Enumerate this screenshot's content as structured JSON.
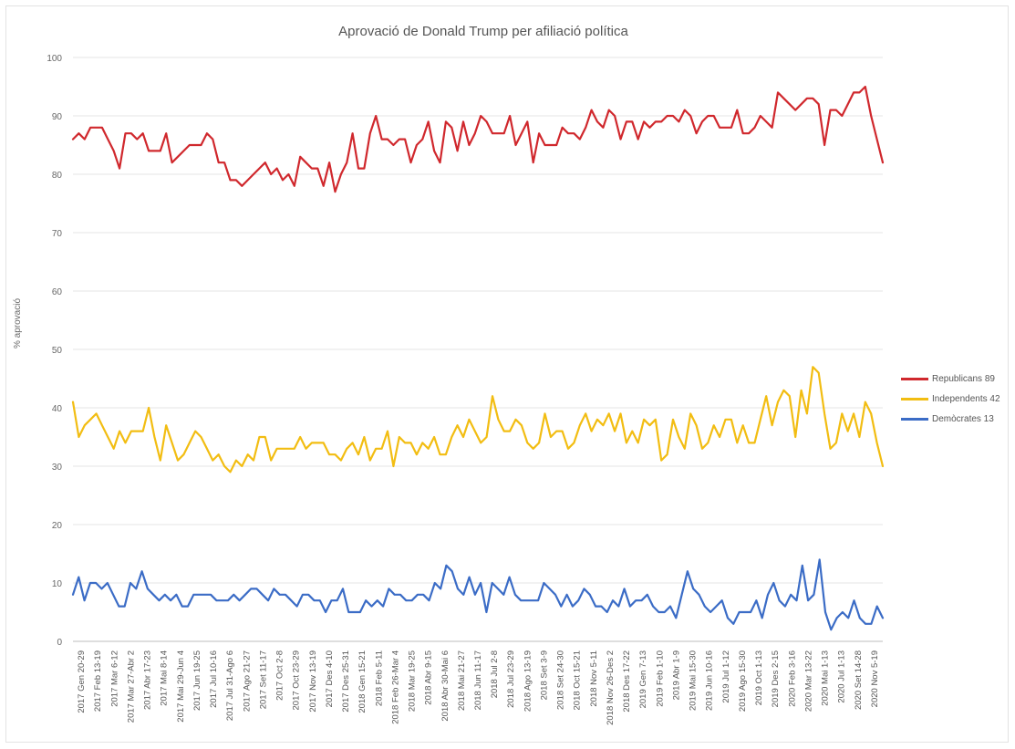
{
  "chart_data": {
    "type": "line",
    "title": "Aprovació de Donald Trump per afiliació política",
    "xlabel": "",
    "ylabel": "% aprovació",
    "ylim": [
      0,
      100
    ],
    "yticks": [
      0,
      10,
      20,
      30,
      40,
      50,
      60,
      70,
      80,
      90,
      100
    ],
    "grid": true,
    "legend_position": "right",
    "x_tick_labels": [
      "2017 Gen 20-29",
      "2017 Feb 13-19",
      "2017 Mar 6-12",
      "2017 Mar 27-Abr 2",
      "2017 Abr 17-23",
      "2017 Mai 8-14",
      "2017 Mai 29-Jun 4",
      "2017 Jun 19-25",
      "2017 Jul 10-16",
      "2017 Jul 31-Ago 6",
      "2017 Ago 21-27",
      "2017 Set 11-17",
      "2017 Oct 2-8",
      "2017 Oct 23-29",
      "2017 Nov 13-19",
      "2017 Des 4-10",
      "2017 Des 25-31",
      "2018 Gen 15-21",
      "2018 Feb 5-11",
      "2018 Feb 26-Mar 4",
      "2018 Mar 19-25",
      "2018 Abr 9-15",
      "2018 Abr 30-Mai 6",
      "2018 Mai 21-27",
      "2018 Jun 11-17",
      "2018 Jul 2-8",
      "2018 Jul 23-29",
      "2018 Ago 13-19",
      "2018 Set 3-9",
      "2018 Set 24-30",
      "2018 Oct 15-21",
      "2018 Nov 5-11",
      "2018 Nov 26-Des 2",
      "2018 Des 17-22",
      "2019 Gen 7-13",
      "2019 Feb 1-10",
      "2019 Abr 1-9",
      "2019 Mai 15-30",
      "2019 Jun 10-16",
      "2019 Jul 1-12",
      "2019 Ago 15-30",
      "2019 Oct 1-13",
      "2019 Des 2-15",
      "2020 Feb 3-16",
      "2020 Mar 13-22",
      "2020 Mai 1-13",
      "2020 Jul 1-13",
      "2020 Set 14-28",
      "2020 Nov 5-19"
    ],
    "series": [
      {
        "name": "Republicans 89",
        "color": "#d0282d",
        "values": [
          86,
          87,
          86,
          88,
          88,
          88,
          86,
          84,
          81,
          87,
          87,
          86,
          87,
          84,
          84,
          84,
          87,
          82,
          83,
          84,
          85,
          85,
          85,
          87,
          86,
          82,
          82,
          79,
          79,
          78,
          79,
          80,
          81,
          82,
          80,
          81,
          79,
          80,
          78,
          83,
          82,
          81,
          81,
          78,
          82,
          77,
          80,
          82,
          87,
          81,
          81,
          87,
          90,
          86,
          86,
          85,
          86,
          86,
          82,
          85,
          86,
          89,
          84,
          82,
          89,
          88,
          84,
          89,
          85,
          87,
          90,
          89,
          87,
          87,
          87,
          90,
          85,
          87,
          89,
          82,
          87,
          85,
          85,
          85,
          88,
          87,
          87,
          86,
          88,
          91,
          89,
          88,
          91,
          90,
          86,
          89,
          89,
          86,
          89,
          88,
          89,
          89,
          90,
          90,
          89,
          91,
          90,
          87,
          89,
          90,
          90,
          88,
          88,
          88,
          91,
          87,
          87,
          88,
          90,
          89,
          88,
          94,
          93,
          92,
          91,
          92,
          93,
          93,
          92,
          85,
          91,
          91,
          90,
          92,
          94,
          94,
          95,
          90,
          86,
          82
        ]
      },
      {
        "name": "Independents 42",
        "color": "#f2bd12",
        "values": [
          41,
          35,
          37,
          38,
          39,
          37,
          35,
          33,
          36,
          34,
          36,
          36,
          36,
          40,
          35,
          31,
          37,
          34,
          31,
          32,
          34,
          36,
          35,
          33,
          31,
          32,
          30,
          29,
          31,
          30,
          32,
          31,
          35,
          35,
          31,
          33,
          33,
          33,
          33,
          35,
          33,
          34,
          34,
          34,
          32,
          32,
          31,
          33,
          34,
          32,
          35,
          31,
          33,
          33,
          36,
          30,
          35,
          34,
          34,
          32,
          34,
          33,
          35,
          32,
          32,
          35,
          37,
          35,
          38,
          36,
          34,
          35,
          42,
          38,
          36,
          36,
          38,
          37,
          34,
          33,
          34,
          39,
          35,
          36,
          36,
          33,
          34,
          37,
          39,
          36,
          38,
          37,
          39,
          36,
          39,
          34,
          36,
          34,
          38,
          37,
          38,
          31,
          32,
          38,
          35,
          33,
          39,
          37,
          33,
          34,
          37,
          35,
          38,
          38,
          34,
          37,
          34,
          34,
          38,
          42,
          37,
          41,
          43,
          42,
          35,
          43,
          39,
          47,
          46,
          39,
          33,
          34,
          39,
          36,
          39,
          35,
          41,
          39,
          34,
          30
        ]
      },
      {
        "name": "Demòcrates 13",
        "color": "#3b6cc6",
        "values": [
          8,
          11,
          7,
          10,
          10,
          9,
          10,
          8,
          6,
          6,
          10,
          9,
          12,
          9,
          8,
          7,
          8,
          7,
          8,
          6,
          6,
          8,
          8,
          8,
          8,
          7,
          7,
          7,
          8,
          7,
          8,
          9,
          9,
          8,
          7,
          9,
          8,
          8,
          7,
          6,
          8,
          8,
          7,
          7,
          5,
          7,
          7,
          9,
          5,
          5,
          5,
          7,
          6,
          7,
          6,
          9,
          8,
          8,
          7,
          7,
          8,
          8,
          7,
          10,
          9,
          13,
          12,
          9,
          8,
          11,
          8,
          10,
          5,
          10,
          9,
          8,
          11,
          8,
          7,
          7,
          7,
          7,
          10,
          9,
          8,
          6,
          8,
          6,
          7,
          9,
          8,
          6,
          6,
          5,
          7,
          6,
          9,
          6,
          7,
          7,
          8,
          6,
          5,
          5,
          6,
          4,
          8,
          12,
          9,
          8,
          6,
          5,
          6,
          7,
          4,
          3,
          5,
          5,
          5,
          7,
          4,
          8,
          10,
          7,
          6,
          8,
          7,
          13,
          7,
          8,
          14,
          5,
          2,
          4,
          5,
          4,
          7,
          4,
          3,
          3,
          6,
          4
        ]
      }
    ]
  }
}
